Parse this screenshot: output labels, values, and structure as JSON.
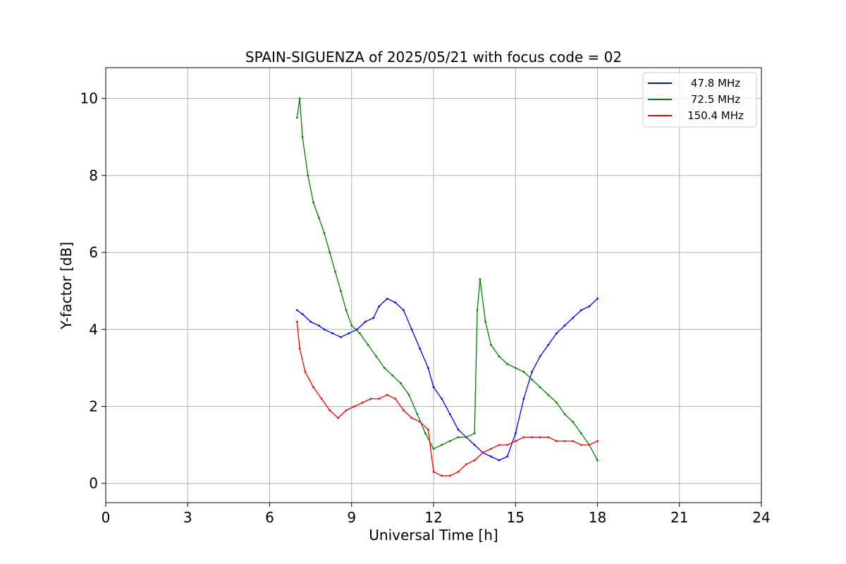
{
  "chart_data": {
    "type": "line",
    "title": "SPAIN-SIGUENZA of 2025/05/21 with focus code = 02",
    "xlabel": "Universal Time [h]",
    "ylabel": "Y-factor [dB]",
    "xlim": [
      0,
      24
    ],
    "ylim": [
      -0.5,
      10.8
    ],
    "xticks": [
      0,
      3,
      6,
      9,
      12,
      15,
      18,
      21,
      24
    ],
    "yticks": [
      0,
      2,
      4,
      6,
      8,
      10
    ],
    "grid": true,
    "legend_position": "top-right",
    "series": [
      {
        "name": "47.8 MHz",
        "color": "#0000ff",
        "x": [
          7.0,
          7.2,
          7.5,
          7.8,
          8.0,
          8.3,
          8.6,
          8.9,
          9.2,
          9.5,
          9.8,
          10.0,
          10.3,
          10.6,
          10.9,
          11.2,
          11.5,
          11.8,
          12.0,
          12.3,
          12.6,
          12.9,
          13.2,
          13.5,
          13.8,
          14.1,
          14.4,
          14.7,
          15.0,
          15.3,
          15.6,
          15.9,
          16.2,
          16.5,
          16.8,
          17.1,
          17.4,
          17.7,
          18.0
        ],
        "y": [
          4.5,
          4.4,
          4.2,
          4.1,
          4.0,
          3.9,
          3.8,
          3.9,
          4.0,
          4.2,
          4.3,
          4.6,
          4.8,
          4.7,
          4.5,
          4.0,
          3.5,
          3.0,
          2.5,
          2.2,
          1.8,
          1.4,
          1.2,
          1.0,
          0.8,
          0.7,
          0.6,
          0.7,
          1.3,
          2.2,
          2.9,
          3.3,
          3.6,
          3.9,
          4.1,
          4.3,
          4.5,
          4.6,
          4.8
        ]
      },
      {
        "name": "72.5 MHz",
        "color": "#008000",
        "x": [
          7.0,
          7.1,
          7.2,
          7.4,
          7.6,
          7.8,
          8.0,
          8.2,
          8.4,
          8.6,
          8.8,
          9.0,
          9.3,
          9.6,
          9.9,
          10.2,
          10.5,
          10.8,
          11.1,
          11.4,
          11.7,
          12.0,
          12.3,
          12.6,
          12.9,
          13.2,
          13.5,
          13.6,
          13.7,
          13.9,
          14.1,
          14.4,
          14.7,
          15.0,
          15.3,
          15.6,
          15.9,
          16.2,
          16.5,
          16.8,
          17.1,
          17.4,
          17.7,
          18.0
        ],
        "y": [
          9.5,
          10.0,
          9.0,
          8.0,
          7.3,
          6.9,
          6.5,
          6.0,
          5.5,
          5.0,
          4.5,
          4.1,
          3.9,
          3.6,
          3.3,
          3.0,
          2.8,
          2.6,
          2.3,
          1.8,
          1.3,
          0.9,
          1.0,
          1.1,
          1.2,
          1.2,
          1.3,
          4.5,
          5.3,
          4.2,
          3.6,
          3.3,
          3.1,
          3.0,
          2.9,
          2.7,
          2.5,
          2.3,
          2.1,
          1.8,
          1.6,
          1.3,
          1.0,
          0.6
        ]
      },
      {
        "name": "150.4 MHz",
        "color": "#ff0000",
        "x": [
          7.0,
          7.1,
          7.3,
          7.6,
          7.9,
          8.2,
          8.5,
          8.8,
          9.1,
          9.4,
          9.7,
          10.0,
          10.3,
          10.6,
          10.9,
          11.2,
          11.5,
          11.8,
          12.0,
          12.3,
          12.6,
          12.9,
          13.2,
          13.5,
          13.8,
          14.1,
          14.4,
          14.7,
          15.0,
          15.3,
          15.6,
          15.9,
          16.2,
          16.5,
          16.8,
          17.1,
          17.4,
          17.7,
          18.0
        ],
        "y": [
          4.2,
          3.5,
          2.9,
          2.5,
          2.2,
          1.9,
          1.7,
          1.9,
          2.0,
          2.1,
          2.2,
          2.2,
          2.3,
          2.2,
          1.9,
          1.7,
          1.6,
          1.4,
          0.3,
          0.2,
          0.2,
          0.3,
          0.5,
          0.6,
          0.8,
          0.9,
          1.0,
          1.0,
          1.1,
          1.2,
          1.2,
          1.2,
          1.2,
          1.1,
          1.1,
          1.1,
          1.0,
          1.0,
          1.1
        ]
      }
    ]
  }
}
